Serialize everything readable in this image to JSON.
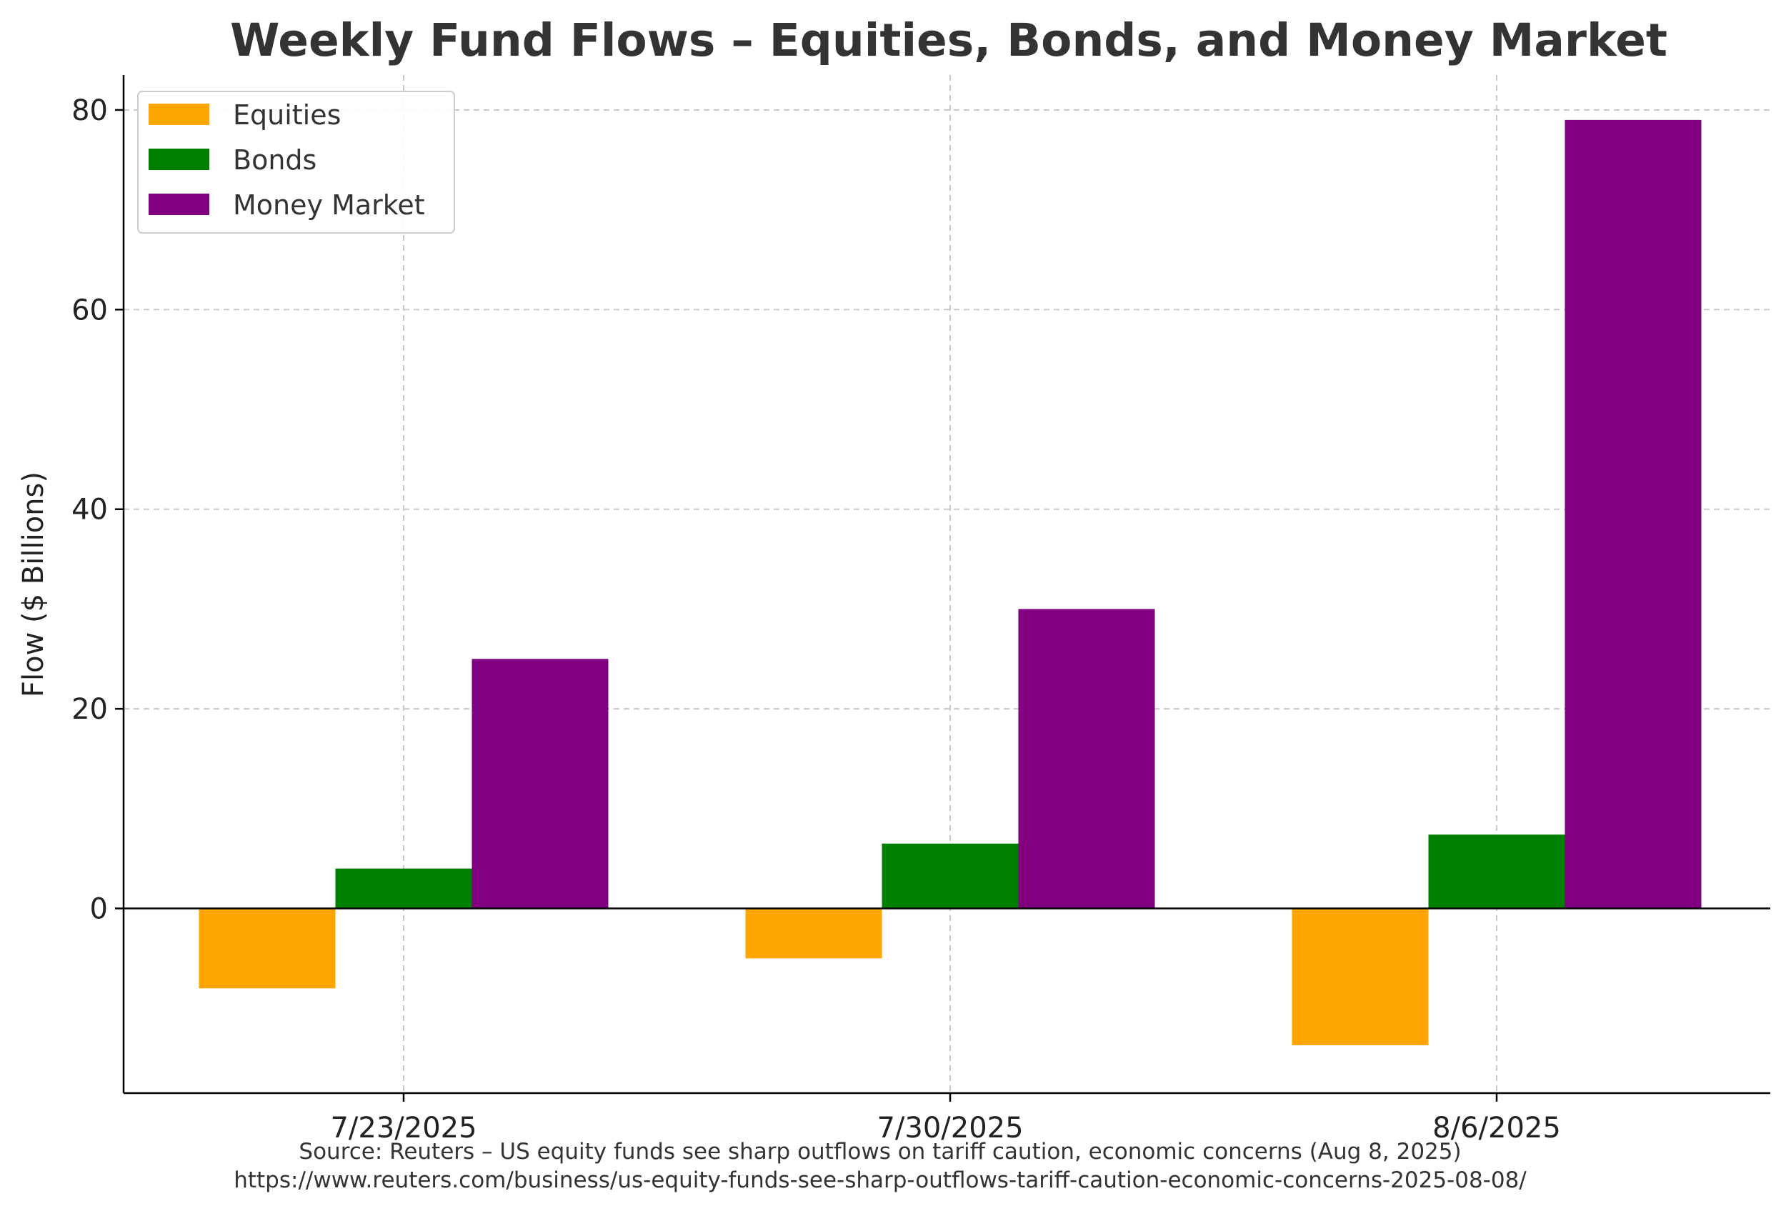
{
  "chart_data": {
    "type": "bar",
    "title": "Weekly Fund Flows – Equities, Bonds, and Money Market",
    "xlabel": "",
    "ylabel": "Flow ($ Billions)",
    "categories": [
      "7/23/2025",
      "7/30/2025",
      "8/6/2025"
    ],
    "series": [
      {
        "name": "Equities",
        "color": "#FFA500",
        "values": [
          -8,
          -5,
          -13.7
        ]
      },
      {
        "name": "Bonds",
        "color": "#008000",
        "values": [
          4,
          6.5,
          7.4
        ]
      },
      {
        "name": "Money Market",
        "color": "#800080",
        "values": [
          25,
          30,
          79
        ]
      }
    ],
    "ylim": [
      -18.5,
      83.5
    ],
    "yticks": [
      0,
      20,
      40,
      60,
      80
    ],
    "grid": true,
    "legend_position": "top-left",
    "source_line1": "Source: Reuters – US equity funds see sharp outflows on tariff caution, economic concerns (Aug 8, 2025)",
    "source_line2": "https://www.reuters.com/business/us-equity-funds-see-sharp-outflows-tariff-caution-economic-concerns-2025-08-08/"
  }
}
